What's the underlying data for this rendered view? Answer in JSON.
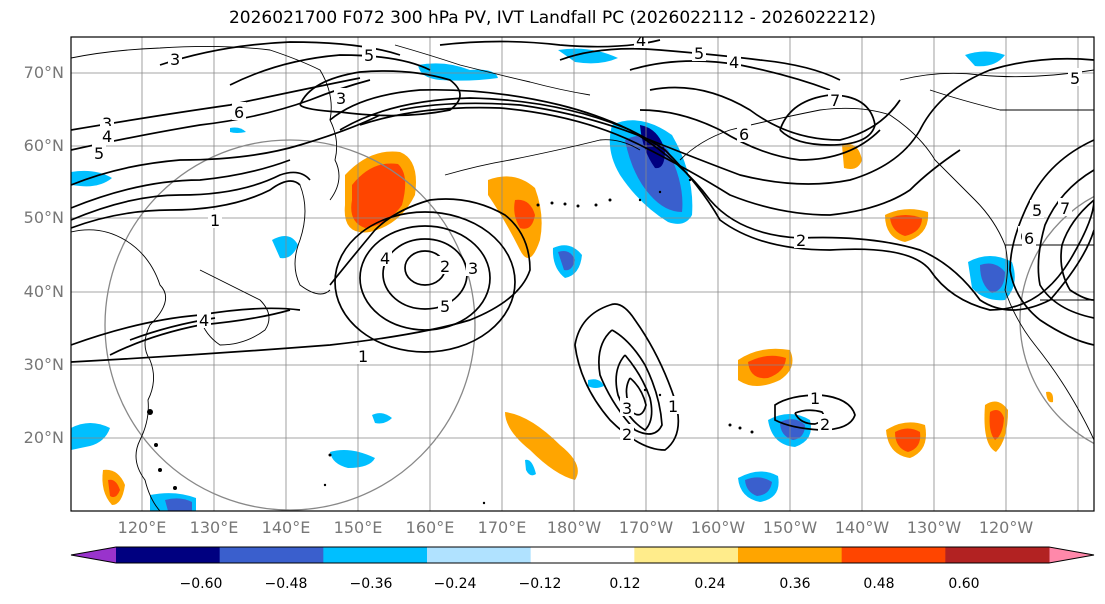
{
  "title": "2026021700 F072 300 hPa PV, IVT Landfall PC (2026022112 - 2026022212)",
  "map": {
    "lat_labels": [
      "70°N",
      "60°N",
      "50°N",
      "40°N",
      "30°N",
      "20°N"
    ],
    "lon_labels": [
      "120°E",
      "130°E",
      "140°E",
      "150°E",
      "160°E",
      "170°E",
      "180°W",
      "170°W",
      "160°W",
      "150°W",
      "140°W",
      "130°W",
      "120°W"
    ],
    "contour_labels": [
      "3",
      "5",
      "3",
      "4",
      "5",
      "6",
      "3",
      "4",
      "5",
      "4",
      "1",
      "2",
      "3",
      "4",
      "5",
      "1",
      "6",
      "7",
      "6",
      "7",
      "5",
      "2",
      "1",
      "2",
      "1",
      "2",
      "3",
      "4",
      "5",
      "6"
    ]
  },
  "colorbar": {
    "colors": [
      "#9933cc",
      "#000080",
      "#3a5fcd",
      "#00bfff",
      "#b0e2ff",
      "#ffffff",
      "#ffec8b",
      "#ffa500",
      "#ff4500",
      "#b22222",
      "#ff88aa"
    ],
    "tick_labels": [
      "−0.60",
      "−0.48",
      "−0.36",
      "−0.24",
      "−0.12",
      "0.12",
      "0.24",
      "0.36",
      "0.48",
      "0.60"
    ]
  }
}
